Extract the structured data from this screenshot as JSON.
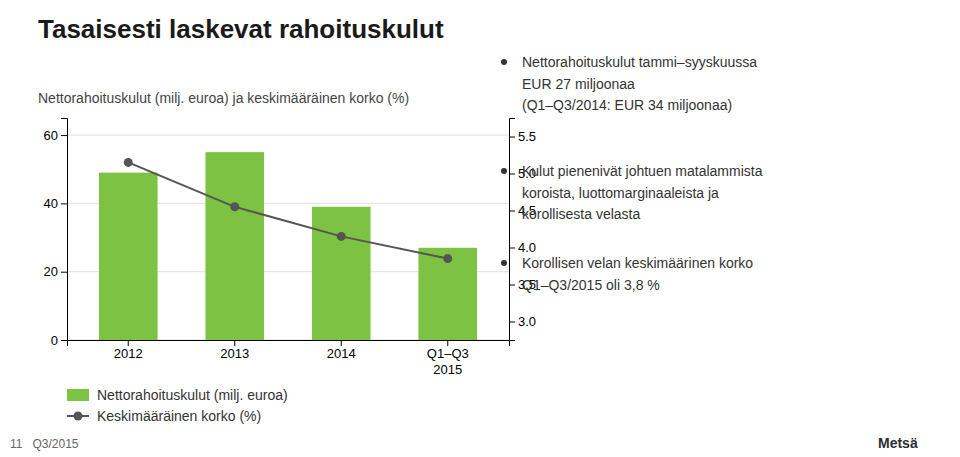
{
  "chart_data": {
    "type": "bar",
    "title": "Tasaisesti laskevat rahoituskulut",
    "subtitle": "Nettorahoituskulut (milj. euroa) ja keskimääräinen korko (%)",
    "categories": [
      "2012",
      "2013",
      "2014",
      "Q1–Q3\n2015"
    ],
    "series": [
      {
        "name": "Nettorahoituskulut (milj. euroa)",
        "type": "bar",
        "color": "#7dc242",
        "values": [
          49,
          55,
          39,
          27
        ]
      },
      {
        "name": "Keskimääräinen korko (%)",
        "type": "line",
        "axis": "y2",
        "color": "#555555",
        "marker": "circle",
        "values": [
          5.15,
          4.55,
          4.15,
          3.85
        ]
      }
    ],
    "ylim": [
      0,
      65
    ],
    "yticks": [
      0,
      20,
      40,
      60
    ],
    "y2lim": [
      2.75,
      5.75
    ],
    "y2ticks": [
      {
        "value": 3,
        "label": "3.0"
      },
      3.5,
      {
        "value": 4,
        "label": "4.0"
      },
      4.5,
      {
        "value": 5,
        "label": "5.0"
      },
      5.5
    ],
    "grid": true,
    "legend": "lower left",
    "annotations": [
      "Nettorahoituskulut tammi–syyskuussa\nEUR 27 miljoonaa\n(Q1–Q3/2014: EUR 34 miljoonaa)",
      "Kulut pienenivät johtuen matalammista\nkoroista, luottomarginaaleista ja\nkorollisesta velasta",
      "Korollisen velan keskimäärinen korko\nQ1–Q3/2015 oli 3,8 %",
      "11   Q3/2015",
      "Metsä"
    ]
  }
}
